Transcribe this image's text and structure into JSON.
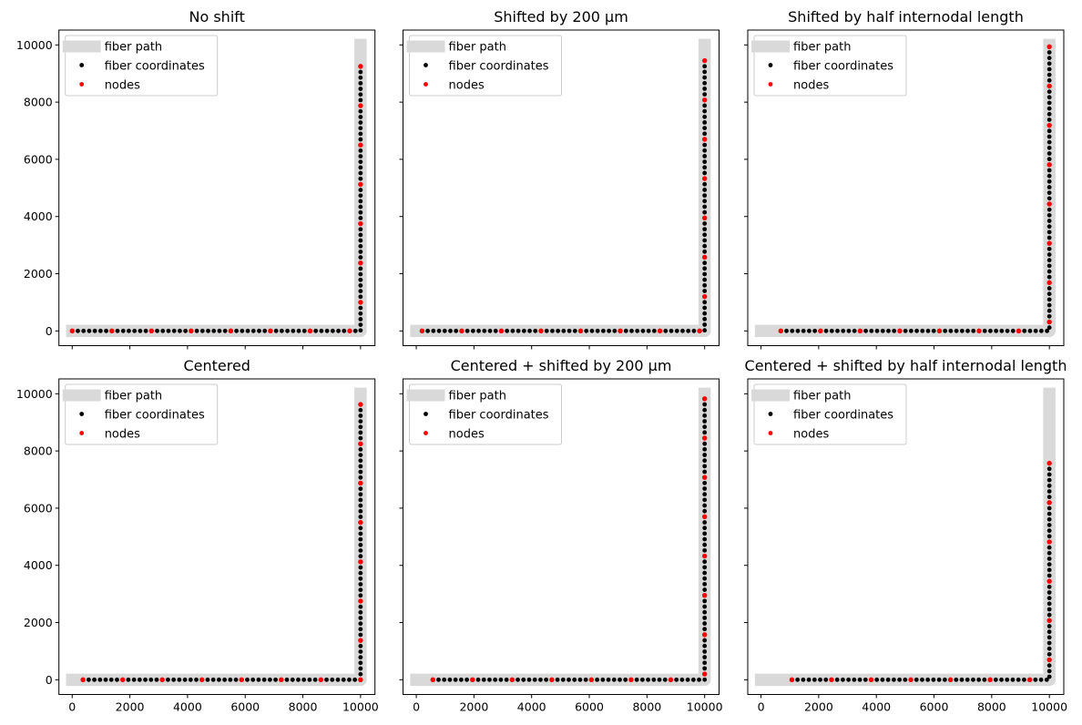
{
  "colors": {
    "fiber_path": "#d9d9d9",
    "fiber_coordinates": "#000000",
    "nodes": "#ff0000",
    "legend_border": "#cccccc"
  },
  "legend": {
    "placement": "upper-left",
    "entries": [
      "fiber path",
      "fiber coordinates",
      "nodes"
    ]
  },
  "chart_data": [
    {
      "type": "scatter",
      "title": "No shift",
      "xlim": [
        -460,
        10500
      ],
      "ylim": [
        -515,
        10520
      ],
      "xticks": [
        "0",
        "2000",
        "4000",
        "6000",
        "8000",
        "10000"
      ],
      "yticks": [
        "0",
        "2000",
        "4000",
        "6000",
        "8000",
        "10000"
      ],
      "fiber_path": {
        "x": [
          0,
          10000,
          10000
        ],
        "y": [
          0,
          0,
          10000
        ]
      },
      "fiber_coordinates_per_internode": 7,
      "nodes": {
        "x": [
          0,
          1375,
          2750,
          4125,
          5500,
          6875,
          8250,
          9625,
          10000,
          10000,
          10000,
          10000,
          10000,
          10000,
          10000
        ],
        "y": [
          0,
          0,
          0,
          0,
          0,
          0,
          0,
          0,
          1000,
          2375,
          3750,
          5125,
          6500,
          7875,
          9250
        ]
      }
    },
    {
      "type": "scatter",
      "title": "Shifted by 200 µm",
      "xlim": [
        -460,
        10500
      ],
      "ylim": [
        -515,
        10520
      ],
      "xticks": [
        "0",
        "2000",
        "4000",
        "6000",
        "8000",
        "10000"
      ],
      "yticks": [
        "0",
        "2000",
        "4000",
        "6000",
        "8000",
        "10000"
      ],
      "fiber_path": {
        "x": [
          0,
          10000,
          10000
        ],
        "y": [
          0,
          0,
          10000
        ]
      },
      "fiber_coordinates_per_internode": 7,
      "nodes": {
        "x": [
          200,
          1575,
          2950,
          4325,
          5700,
          7075,
          8450,
          9825,
          10000,
          10000,
          10000,
          10000,
          10000,
          10000,
          10000
        ],
        "y": [
          0,
          0,
          0,
          0,
          0,
          0,
          0,
          0,
          1200,
          2575,
          3950,
          5325,
          6700,
          8075,
          9450
        ]
      }
    },
    {
      "type": "scatter",
      "title": "Shifted by half internodal length",
      "xlim": [
        -460,
        10500
      ],
      "ylim": [
        -515,
        10520
      ],
      "xticks": [
        "0",
        "2000",
        "4000",
        "6000",
        "8000",
        "10000"
      ],
      "yticks": [
        "0",
        "2000",
        "4000",
        "6000",
        "8000",
        "10000"
      ],
      "fiber_path": {
        "x": [
          0,
          10000,
          10000
        ],
        "y": [
          0,
          0,
          10000
        ]
      },
      "fiber_coordinates_per_internode": 7,
      "nodes": {
        "x": [
          687,
          2062,
          3437,
          4812,
          6187,
          7562,
          8937,
          10000,
          10000,
          10000,
          10000,
          10000,
          10000,
          10000,
          10000
        ],
        "y": [
          0,
          0,
          0,
          0,
          0,
          0,
          0,
          312,
          1687,
          3062,
          4437,
          5812,
          7187,
          8562,
          9937
        ]
      }
    },
    {
      "type": "scatter",
      "title": "Centered",
      "xlim": [
        -460,
        10500
      ],
      "ylim": [
        -515,
        10520
      ],
      "xticks": [
        "0",
        "2000",
        "4000",
        "6000",
        "8000",
        "10000"
      ],
      "yticks": [
        "0",
        "2000",
        "4000",
        "6000",
        "8000",
        "10000"
      ],
      "fiber_path": {
        "x": [
          0,
          10000,
          10000
        ],
        "y": [
          0,
          0,
          10000
        ]
      },
      "fiber_coordinates_per_internode": 7,
      "nodes": {
        "x": [
          375,
          1750,
          3125,
          4500,
          5875,
          7250,
          8625,
          10000,
          10000,
          10000,
          10000,
          10000,
          10000,
          10000,
          10000
        ],
        "y": [
          0,
          0,
          0,
          0,
          0,
          0,
          0,
          0,
          1375,
          2750,
          4125,
          5500,
          6875,
          8250,
          9625
        ]
      }
    },
    {
      "type": "scatter",
      "title": "Centered + shifted by 200 µm",
      "xlim": [
        -460,
        10500
      ],
      "ylim": [
        -515,
        10520
      ],
      "xticks": [
        "0",
        "2000",
        "4000",
        "6000",
        "8000",
        "10000"
      ],
      "yticks": [
        "0",
        "2000",
        "4000",
        "6000",
        "8000",
        "10000"
      ],
      "fiber_path": {
        "x": [
          0,
          10000,
          10000
        ],
        "y": [
          0,
          0,
          10000
        ]
      },
      "fiber_coordinates_per_internode": 7,
      "nodes": {
        "x": [
          575,
          1950,
          3325,
          4700,
          6075,
          7450,
          8825,
          10000,
          10000,
          10000,
          10000,
          10000,
          10000,
          10000,
          10000
        ],
        "y": [
          0,
          0,
          0,
          0,
          0,
          0,
          0,
          200,
          1575,
          2950,
          4325,
          5700,
          7075,
          8450,
          9825
        ]
      }
    },
    {
      "type": "scatter",
      "title": "Centered + shifted by half internodal length",
      "xlim": [
        -460,
        10500
      ],
      "ylim": [
        -515,
        10520
      ],
      "xticks": [
        "0",
        "2000",
        "4000",
        "6000",
        "8000",
        "10000"
      ],
      "yticks": [
        "0",
        "2000",
        "4000",
        "6000",
        "8000",
        "10000"
      ],
      "fiber_path": {
        "x": [
          0,
          10000,
          10000
        ],
        "y": [
          0,
          0,
          10000
        ]
      },
      "fiber_coordinates_per_internode": 7,
      "nodes": {
        "x": [
          1070,
          2445,
          3820,
          5195,
          6570,
          7945,
          9320,
          10000,
          10000,
          10000,
          10000,
          10000,
          10000
        ],
        "y": [
          0,
          0,
          0,
          0,
          0,
          0,
          0,
          695,
          2070,
          3445,
          4820,
          6195,
          7570
        ]
      }
    }
  ]
}
